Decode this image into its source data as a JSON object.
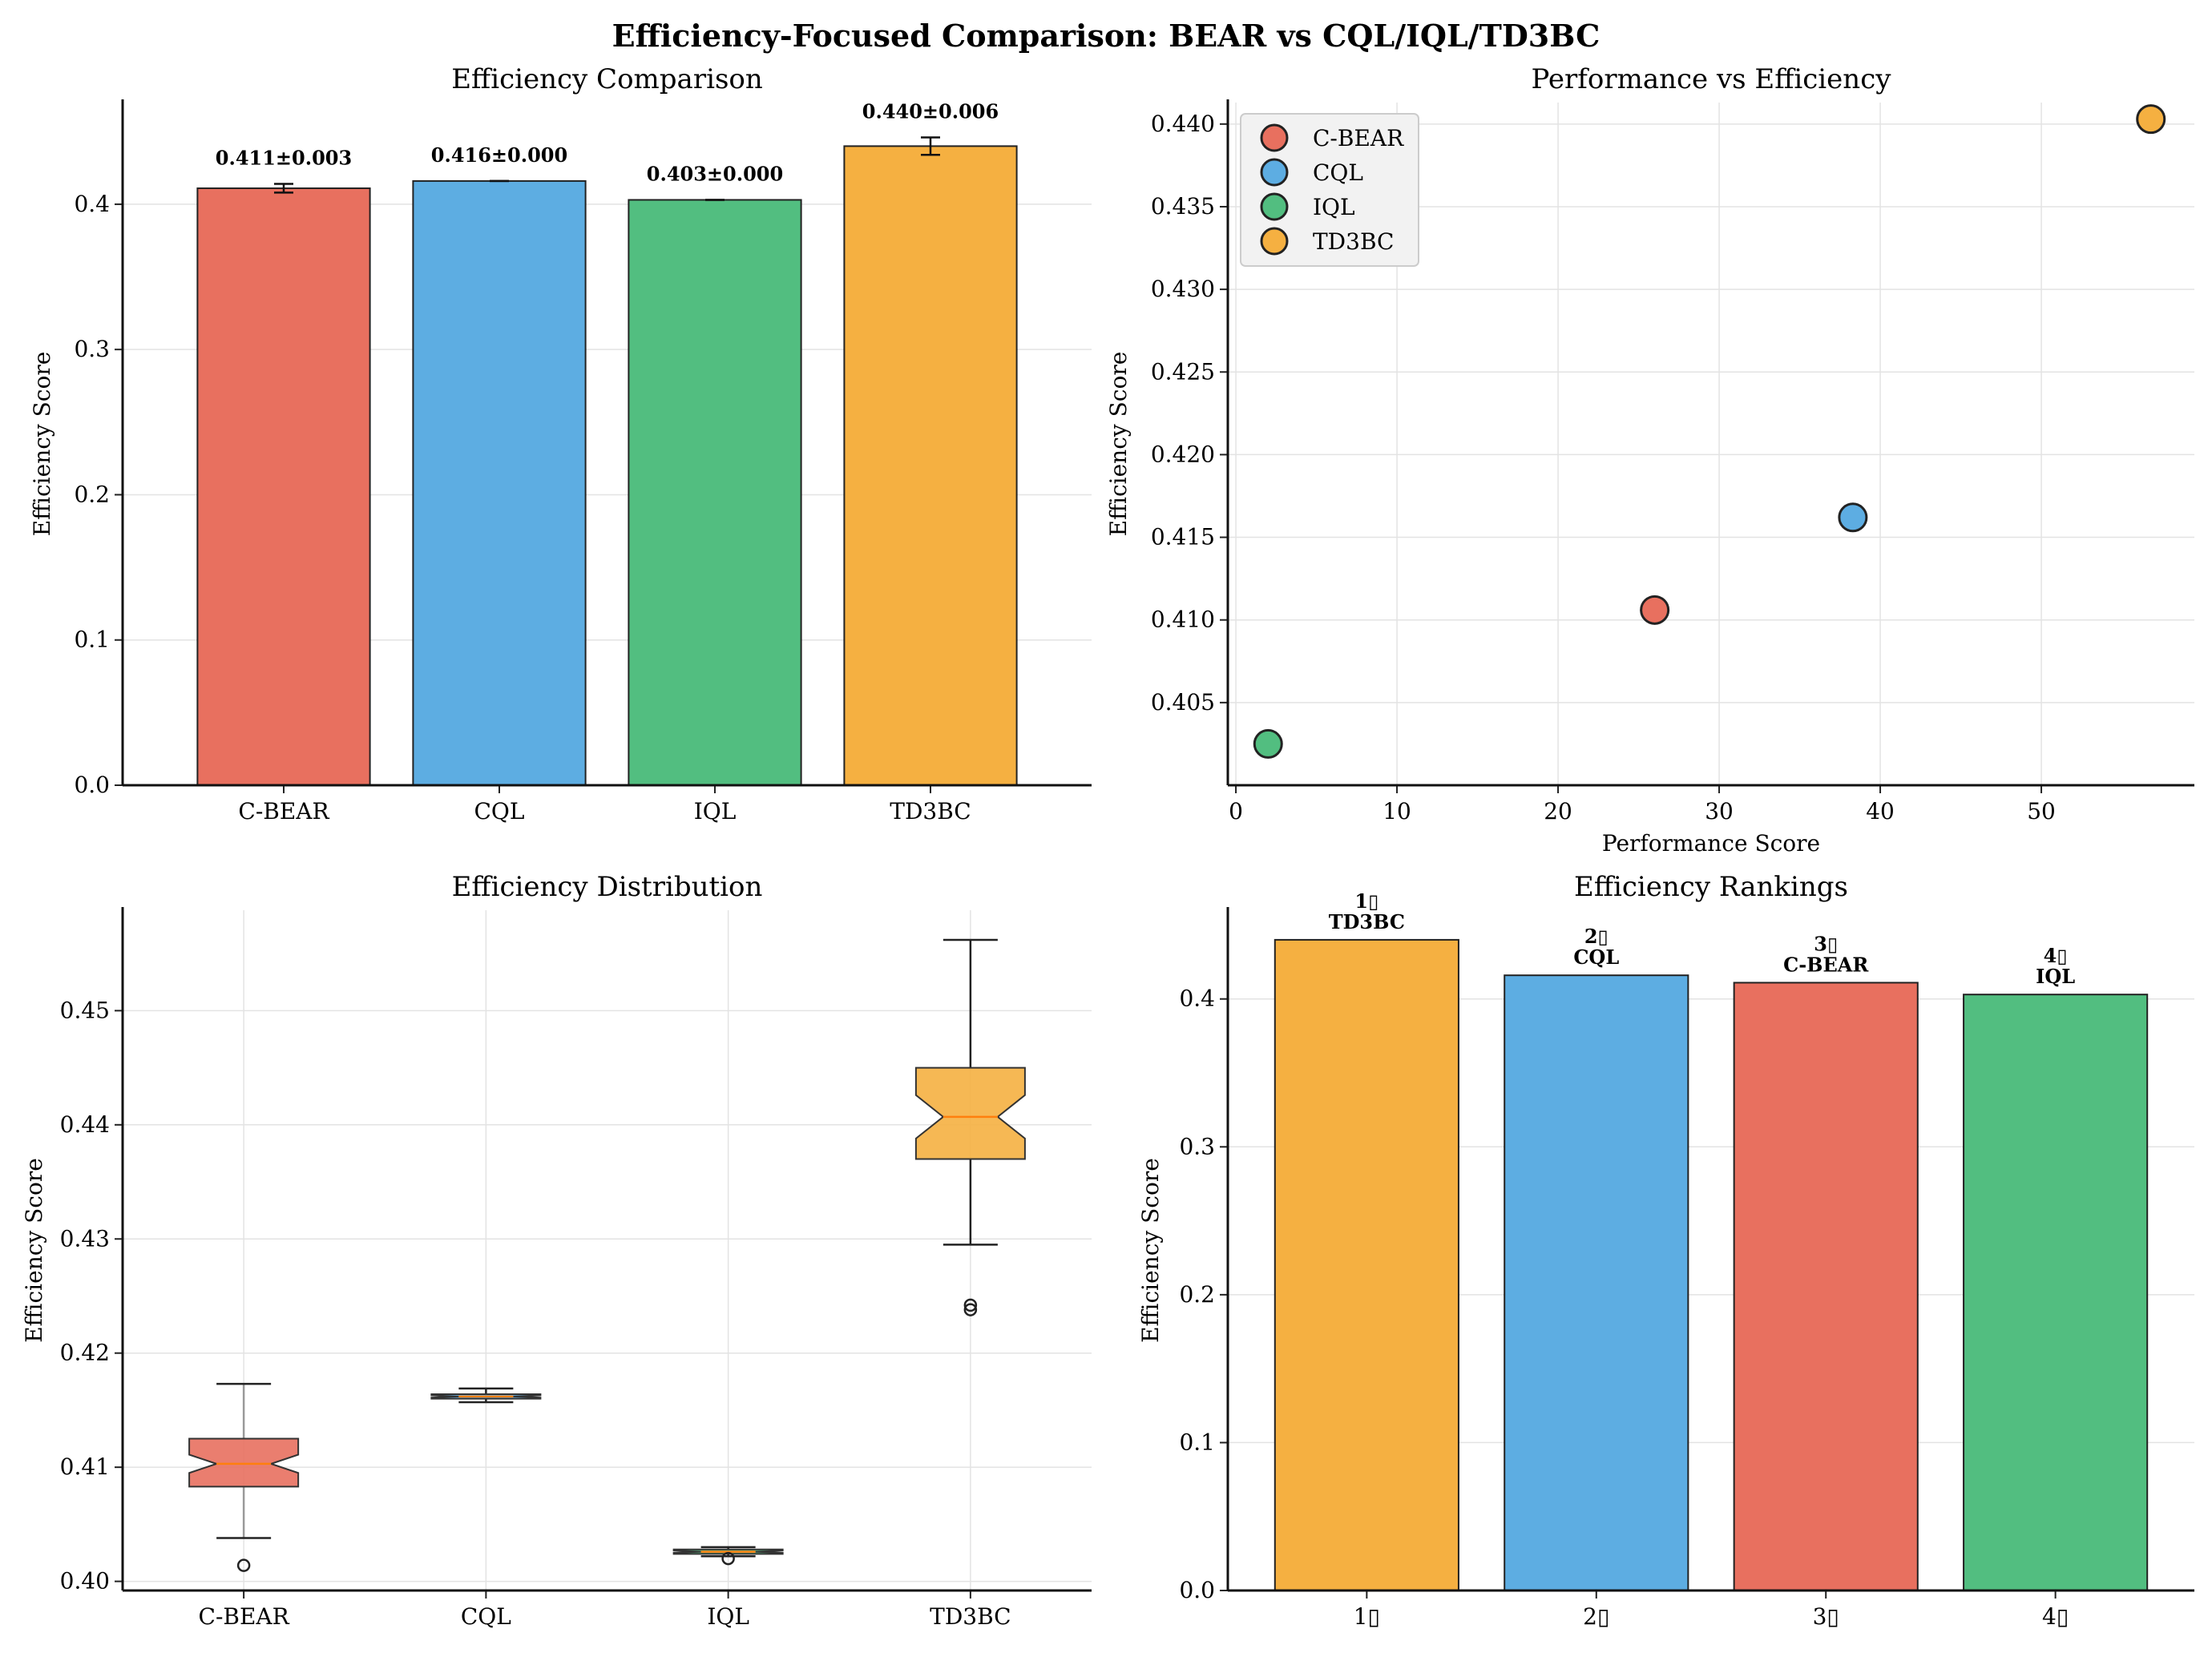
{
  "suptitle": "Efficiency-Focused Comparison: BEAR vs CQL/IQL/TD3BC",
  "colors": {
    "C-BEAR": "#e8705f",
    "CQL": "#5dade2",
    "IQL": "#52be80",
    "TD3BC": "#f5b041",
    "median": "#ff7f0e",
    "grid": "#e3e3e3",
    "edge": "#222222"
  },
  "chart_data": [
    {
      "id": "bar",
      "type": "bar",
      "title": "Efficiency Comparison",
      "xlabel": "",
      "ylabel": "Efficiency Score",
      "categories": [
        "C-BEAR",
        "CQL",
        "IQL",
        "TD3BC"
      ],
      "values": [
        0.411,
        0.416,
        0.403,
        0.44
      ],
      "errors": [
        0.003,
        0.0,
        0.0,
        0.006
      ],
      "value_labels": [
        "0.411±0.003",
        "0.416±0.000",
        "0.403±0.000",
        "0.440±0.006"
      ],
      "ylim": [
        0,
        0.47
      ],
      "yticks": [
        0.0,
        0.1,
        0.2,
        0.3,
        0.4
      ],
      "ytick_labels": [
        "0.0",
        "0.1",
        "0.2",
        "0.3",
        "0.4"
      ],
      "grid": true
    },
    {
      "id": "scatter",
      "type": "scatter",
      "title": "Performance vs Efficiency",
      "xlabel": "Performance Score",
      "ylabel": "Efficiency Score",
      "series": [
        {
          "name": "C-BEAR",
          "x": 26.0,
          "y": 0.4106
        },
        {
          "name": "CQL",
          "x": 38.3,
          "y": 0.4162
        },
        {
          "name": "IQL",
          "x": 2.0,
          "y": 0.4025
        },
        {
          "name": "TD3BC",
          "x": 56.8,
          "y": 0.4403
        }
      ],
      "xlim": [
        -0.5,
        59.5
      ],
      "ylim": [
        0.4,
        0.4413
      ],
      "xticks": [
        0,
        10,
        20,
        30,
        40,
        50
      ],
      "xtick_labels": [
        "0",
        "10",
        "20",
        "30",
        "40",
        "50"
      ],
      "yticks": [
        0.405,
        0.41,
        0.415,
        0.42,
        0.425,
        0.43,
        0.435,
        0.44
      ],
      "ytick_labels": [
        "0.405",
        "0.410",
        "0.415",
        "0.420",
        "0.425",
        "0.430",
        "0.435",
        "0.440"
      ],
      "legend": "top-left",
      "grid": true
    },
    {
      "id": "box",
      "type": "box",
      "title": "Efficiency Distribution",
      "xlabel": "",
      "ylabel": "Efficiency Score",
      "categories": [
        "C-BEAR",
        "CQL",
        "IQL",
        "TD3BC"
      ],
      "boxes": [
        {
          "name": "C-BEAR",
          "whislo": 0.4038,
          "q1": 0.4083,
          "med": 0.4103,
          "q3": 0.4125,
          "whishi": 0.4173,
          "notch_lo": 0.4095,
          "notch_hi": 0.4111,
          "fliers": [
            0.4014
          ]
        },
        {
          "name": "CQL",
          "whislo": 0.4157,
          "q1": 0.416,
          "med": 0.4162,
          "q3": 0.4164,
          "whishi": 0.4169,
          "notch_lo": 0.4161,
          "notch_hi": 0.4163,
          "fliers": []
        },
        {
          "name": "IQL",
          "whislo": 0.4022,
          "q1": 0.4024,
          "med": 0.4026,
          "q3": 0.4028,
          "whishi": 0.403,
          "notch_lo": 0.4025,
          "notch_hi": 0.4027,
          "fliers": [
            0.402
          ]
        },
        {
          "name": "TD3BC",
          "whislo": 0.4295,
          "q1": 0.437,
          "med": 0.4407,
          "q3": 0.445,
          "whishi": 0.4562,
          "notch_lo": 0.4388,
          "notch_hi": 0.4426,
          "fliers": [
            0.4242,
            0.4238
          ]
        }
      ],
      "ylim": [
        0.3992,
        0.4588
      ],
      "yticks": [
        0.4,
        0.41,
        0.42,
        0.43,
        0.44,
        0.45
      ],
      "ytick_labels": [
        "0.40",
        "0.41",
        "0.42",
        "0.43",
        "0.44",
        "0.45"
      ],
      "grid": true
    },
    {
      "id": "rank",
      "type": "bar",
      "title": "Efficiency Rankings",
      "xlabel": "",
      "ylabel": "Efficiency Score",
      "categories": [
        "1▯",
        "2▯",
        "3▯",
        "4▯"
      ],
      "rank_labels": [
        "1▯",
        "2▯",
        "3▯",
        "4▯"
      ],
      "names": [
        "TD3BC",
        "CQL",
        "C-BEAR",
        "IQL"
      ],
      "values": [
        0.44,
        0.416,
        0.411,
        0.403
      ],
      "ylim": [
        0,
        0.46
      ],
      "yticks": [
        0.0,
        0.1,
        0.2,
        0.3,
        0.4
      ],
      "ytick_labels": [
        "0.0",
        "0.1",
        "0.2",
        "0.3",
        "0.4"
      ],
      "grid": true
    }
  ]
}
